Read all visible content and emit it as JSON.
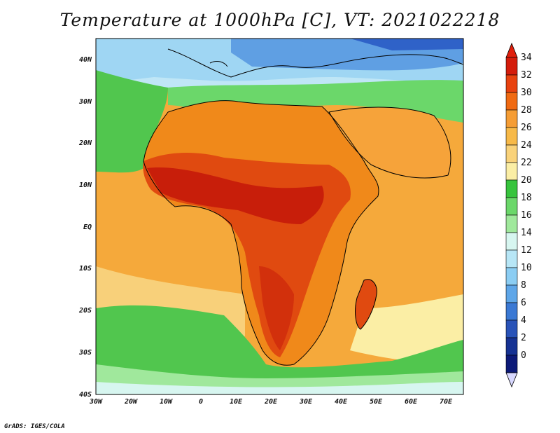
{
  "title": "Temperature at 1000hPa [C], VT: 2021022218",
  "credit": "GrADS: IGES/COLA",
  "map": {
    "lon_labels": [
      "30W",
      "20W",
      "10W",
      "0",
      "10E",
      "20E",
      "30E",
      "40E",
      "50E",
      "60E",
      "70E"
    ],
    "lat_labels": [
      "40N",
      "30N",
      "20N",
      "10N",
      "EQ",
      "10S",
      "20S",
      "30S",
      "40S"
    ]
  },
  "colorbar": {
    "labels": [
      "34",
      "32",
      "30",
      "28",
      "26",
      "24",
      "22",
      "20",
      "18",
      "16",
      "14",
      "12",
      "10",
      "8",
      "6",
      "4",
      "2",
      "0"
    ],
    "colors": [
      "#d41c0b",
      "#e8420f",
      "#f06a12",
      "#f59d35",
      "#f7b948",
      "#f9d27a",
      "#fbeea5",
      "#37c43d",
      "#6bd76a",
      "#a0e89c",
      "#d7f6f0",
      "#b7e6f6",
      "#8bcdf3",
      "#5ea6e8",
      "#3b79d4",
      "#2953b8",
      "#163293",
      "#0d1a78"
    ],
    "over_color": "#e01f0c",
    "under_color": "#d8d8ff"
  },
  "colors": {
    "land_hot": "#d5260d",
    "land_warm": "#f0891a",
    "ocean_warm": "#f5a93b",
    "ocean_mild": "#f8d07a",
    "cool": "#51c64e",
    "cold": "#5f9fe3"
  }
}
